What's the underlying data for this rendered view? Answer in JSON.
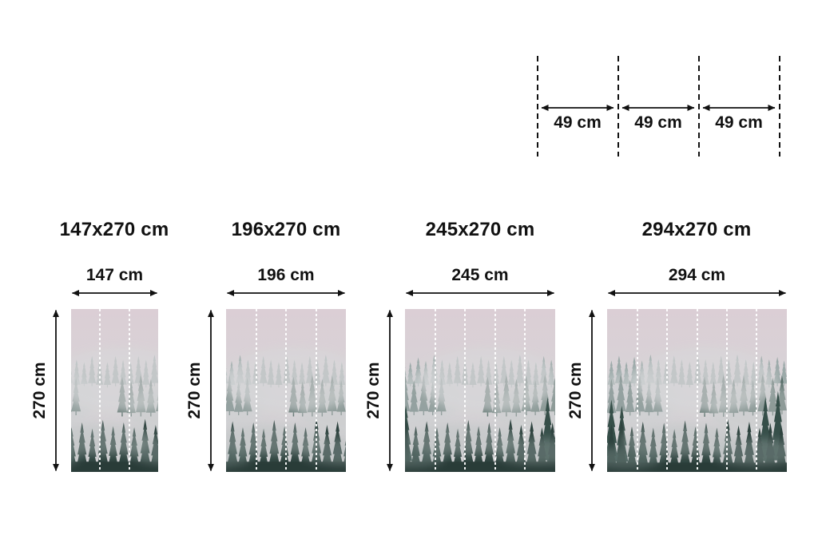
{
  "page": {
    "background": "#ffffff",
    "text_color": "#111111"
  },
  "panel_diagram": {
    "labels": [
      "49 cm",
      "49 cm",
      "49 cm"
    ]
  },
  "sizes": [
    {
      "title": "147x270 cm",
      "width_label": "147 cm",
      "height_label": "270 cm",
      "panels": 3
    },
    {
      "title": "196x270 cm",
      "width_label": "196 cm",
      "height_label": "270 cm",
      "panels": 4
    },
    {
      "title": "245x270 cm",
      "width_label": "245 cm",
      "height_label": "270 cm",
      "panels": 5
    },
    {
      "title": "294x270 cm",
      "width_label": "294 cm",
      "height_label": "270 cm",
      "panels": 6
    }
  ],
  "photo": {
    "subject": "foggy mountain forest wallpaper",
    "divider_color": "#ffffff",
    "colors": {
      "sky": "#dccfd6",
      "fog": "#d9dadb",
      "far_trees": "#8da19e",
      "mid_trees": "#48625b",
      "near_trees": "#213933"
    }
  }
}
